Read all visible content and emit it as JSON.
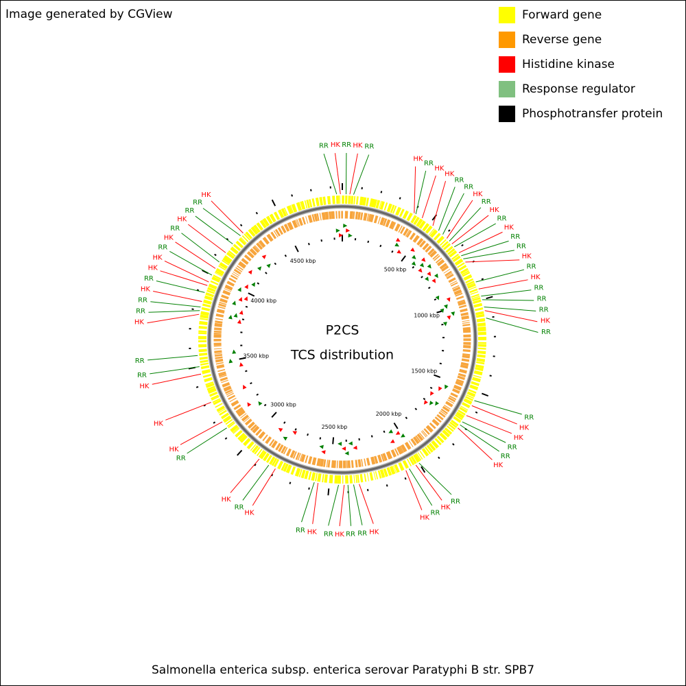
{
  "header": {
    "title": "Image generated by CGView"
  },
  "legend": [
    {
      "name": "Forward gene",
      "color": "#ffff00"
    },
    {
      "name": "Reverse gene",
      "color": "#ff9900"
    },
    {
      "name": "Histidine kinase",
      "color": "#ff0000"
    },
    {
      "name": "Response regulator",
      "color": "#80c080"
    },
    {
      "name": "Phosphotransfer protein",
      "color": "#000000"
    }
  ],
  "center": {
    "title": "P2CS",
    "subtitle": "TCS distribution"
  },
  "caption": "Salmonella enterica subsp. enterica serovar Paratyphi B str. SPB7",
  "xlim": [
    0,
    4860
  ],
  "major_ticks": [
    {
      "value": 0,
      "label": null
    },
    {
      "value": 500,
      "label": "500 kbp"
    },
    {
      "value": 1000,
      "label": "1000 kbp"
    },
    {
      "value": 1500,
      "label": "1500 kbp"
    },
    {
      "value": 2000,
      "label": "2000 kbp"
    },
    {
      "value": 2500,
      "label": "2500 kbp"
    },
    {
      "value": 3000,
      "label": "3000 kbp"
    },
    {
      "value": 3500,
      "label": "3500 kbp"
    },
    {
      "value": 4000,
      "label": "4000 kbp"
    },
    {
      "value": 4500,
      "label": "4500 kbp"
    }
  ],
  "minor_ticks": [
    100,
    200,
    300,
    400,
    600,
    700,
    800,
    900,
    1100,
    1200,
    1300,
    1400,
    1600,
    1700,
    1800,
    1900,
    2100,
    2200,
    2300,
    2400,
    2600,
    2700,
    2800,
    2900,
    3100,
    3200,
    3300,
    3400,
    3600,
    3700,
    3800,
    3900,
    4100,
    4200,
    4300,
    4400,
    4600,
    4700,
    4800
  ],
  "features": [
    {
      "label": "RR",
      "position": 4830,
      "color": "#008000"
    },
    {
      "label": "HK",
      "position": 4850,
      "color": "#ff0000"
    },
    {
      "label": "RR",
      "position": 20,
      "color": "#008000"
    },
    {
      "label": "HK",
      "position": 40,
      "color": "#ff0000"
    },
    {
      "label": "RR",
      "position": 60,
      "color": "#008000"
    },
    {
      "label": "HK",
      "position": 400,
      "color": "#ff0000"
    },
    {
      "label": "RR",
      "position": 410,
      "color": "#008000"
    },
    {
      "label": "HK",
      "position": 450,
      "color": "#ff0000"
    },
    {
      "label": "HK",
      "position": 520,
      "color": "#ff0000"
    },
    {
      "label": "RR",
      "position": 560,
      "color": "#008000"
    },
    {
      "label": "RR",
      "position": 590,
      "color": "#008000"
    },
    {
      "label": "HK",
      "position": 620,
      "color": "#ff0000"
    },
    {
      "label": "RR",
      "position": 640,
      "color": "#008000"
    },
    {
      "label": "HK",
      "position": 660,
      "color": "#ff0000"
    },
    {
      "label": "RR",
      "position": 680,
      "color": "#008000"
    },
    {
      "label": "HK",
      "position": 720,
      "color": "#ff0000"
    },
    {
      "label": "RR",
      "position": 740,
      "color": "#008000"
    },
    {
      "label": "RR",
      "position": 760,
      "color": "#008000"
    },
    {
      "label": "HK",
      "position": 780,
      "color": "#ff0000"
    },
    {
      "label": "RR",
      "position": 900,
      "color": "#008000"
    },
    {
      "label": "HK",
      "position": 940,
      "color": "#ff0000"
    },
    {
      "label": "RR",
      "position": 980,
      "color": "#008000"
    },
    {
      "label": "RR",
      "position": 1000,
      "color": "#008000"
    },
    {
      "label": "RR",
      "position": 1040,
      "color": "#008000"
    },
    {
      "label": "HK",
      "position": 1060,
      "color": "#ff0000"
    },
    {
      "label": "RR",
      "position": 1100,
      "color": "#008000"
    },
    {
      "label": "RR",
      "position": 1550,
      "color": "#008000"
    },
    {
      "label": "HK",
      "position": 1580,
      "color": "#ff0000"
    },
    {
      "label": "HK",
      "position": 1640,
      "color": "#ff0000"
    },
    {
      "label": "RR",
      "position": 1680,
      "color": "#008000"
    },
    {
      "label": "RR",
      "position": 1700,
      "color": "#008000"
    },
    {
      "label": "HK",
      "position": 1720,
      "color": "#ff0000"
    },
    {
      "label": "RR",
      "position": 2000,
      "color": "#008000"
    },
    {
      "label": "HK",
      "position": 2020,
      "color": "#ff0000"
    },
    {
      "label": "RR",
      "position": 2060,
      "color": "#008000"
    },
    {
      "label": "HK",
      "position": 2080,
      "color": "#ff0000"
    },
    {
      "label": "HK",
      "position": 2340,
      "color": "#ff0000"
    },
    {
      "label": "RR",
      "position": 2370,
      "color": "#008000"
    },
    {
      "label": "RR",
      "position": 2400,
      "color": "#008000"
    },
    {
      "label": "HK",
      "position": 2420,
      "color": "#ff0000"
    },
    {
      "label": "RR",
      "position": 2450,
      "color": "#008000"
    },
    {
      "label": "HK",
      "position": 2560,
      "color": "#ff0000"
    },
    {
      "label": "RR",
      "position": 2580,
      "color": "#008000"
    },
    {
      "label": "HK",
      "position": 2800,
      "color": "#ff0000"
    },
    {
      "label": "RR",
      "position": 2840,
      "color": "#008000"
    },
    {
      "label": "HK",
      "position": 2900,
      "color": "#ff0000"
    },
    {
      "label": "RR",
      "position": 3140,
      "color": "#008000"
    },
    {
      "label": "HK",
      "position": 3180,
      "color": "#ff0000"
    },
    {
      "label": "HK",
      "position": 3300,
      "color": "#ff0000"
    },
    {
      "label": "HK",
      "position": 3460,
      "color": "#ff0000"
    },
    {
      "label": "RR",
      "position": 3500,
      "color": "#008000"
    },
    {
      "label": "RR",
      "position": 3560,
      "color": "#008000"
    },
    {
      "label": "HK",
      "position": 3780,
      "color": "#ff0000"
    },
    {
      "label": "RR",
      "position": 3800,
      "color": "#008000"
    },
    {
      "label": "RR",
      "position": 3820,
      "color": "#008000"
    },
    {
      "label": "HK",
      "position": 3850,
      "color": "#ff0000"
    },
    {
      "label": "RR",
      "position": 3900,
      "color": "#008000"
    },
    {
      "label": "HK",
      "position": 3940,
      "color": "#ff0000"
    },
    {
      "label": "HK",
      "position": 3960,
      "color": "#ff0000"
    },
    {
      "label": "RR",
      "position": 4000,
      "color": "#008000"
    },
    {
      "label": "HK",
      "position": 4040,
      "color": "#ff0000"
    },
    {
      "label": "RR",
      "position": 4080,
      "color": "#008000"
    },
    {
      "label": "HK",
      "position": 4140,
      "color": "#ff0000"
    },
    {
      "label": "RR",
      "position": 4200,
      "color": "#008000"
    },
    {
      "label": "RR",
      "position": 4260,
      "color": "#008000"
    },
    {
      "label": "HK",
      "position": 4280,
      "color": "#ff0000"
    }
  ]
}
